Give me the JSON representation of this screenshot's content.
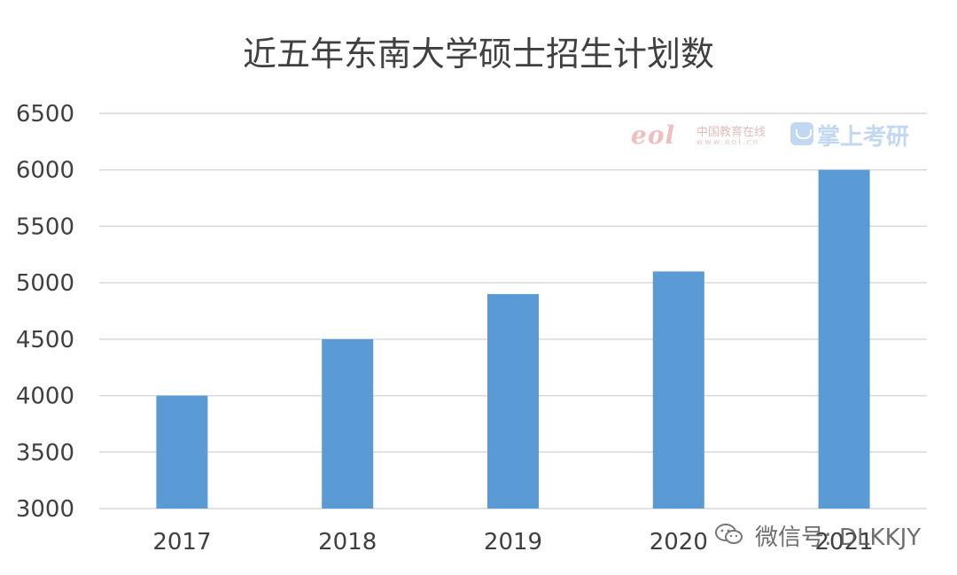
{
  "chart_data": {
    "type": "bar",
    "title": "近五年东南大学硕士招生计划数",
    "categories": [
      "2017",
      "2018",
      "2019",
      "2020",
      "2021"
    ],
    "values": [
      4000,
      4500,
      4900,
      5100,
      6000
    ],
    "ylim": [
      3000,
      6500
    ],
    "yticks": [
      "3000",
      "3500",
      "4000",
      "4500",
      "5000",
      "5500",
      "6000",
      "6500"
    ],
    "grid": true,
    "bar_color": "#5b9bd5"
  },
  "watermarks": {
    "eol_logo": "eol",
    "eol_name": "中国教育在线",
    "eol_url": "www.eol.cn",
    "brand": "掌上考研",
    "wechat_label": "微信号: DLKKJY"
  }
}
